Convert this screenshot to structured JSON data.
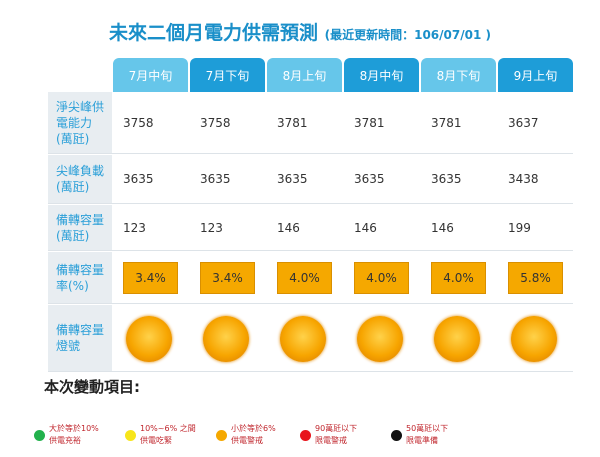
{
  "header": {
    "title": "未來二個月電力供需預測",
    "updated": "(最近更新時間：106/07/01 )"
  },
  "table": {
    "columns": [
      "7月中旬",
      "7月下旬",
      "8月上旬",
      "8月中旬",
      "8月下旬",
      "9月上旬"
    ],
    "row_labels": [
      "淨尖峰供電能力(萬瓩)",
      "尖峰負載(萬瓩)",
      "備轉容量(萬瓩)",
      "備轉容量率(%)",
      "備轉容量燈號"
    ],
    "rows": [
      [
        3758,
        3758,
        3781,
        3781,
        3781,
        3637
      ],
      [
        3635,
        3635,
        3635,
        3635,
        3635,
        3438
      ],
      [
        123,
        123,
        146,
        146,
        146,
        199
      ],
      [
        "3.4%",
        "3.4%",
        "4.0%",
        "4.0%",
        "4.0%",
        "5.8%"
      ]
    ]
  },
  "changes_title": "本次變動項目:",
  "legend": [
    {
      "line1": "大於等於10%",
      "line2": "供電充裕",
      "color": "#22b14c"
    },
    {
      "line1": "10%~6% 之間",
      "line2": "供電吃緊",
      "color": "#f7e51a"
    },
    {
      "line1": "小於等於6%",
      "line2": "供電警戒",
      "color": "#f5a800"
    },
    {
      "line1": "90萬瓩以下",
      "line2": "限電警戒",
      "color": "#e8141b"
    },
    {
      "line1": "50萬瓩以下",
      "line2": "限電準備",
      "color": "#111111"
    }
  ]
}
